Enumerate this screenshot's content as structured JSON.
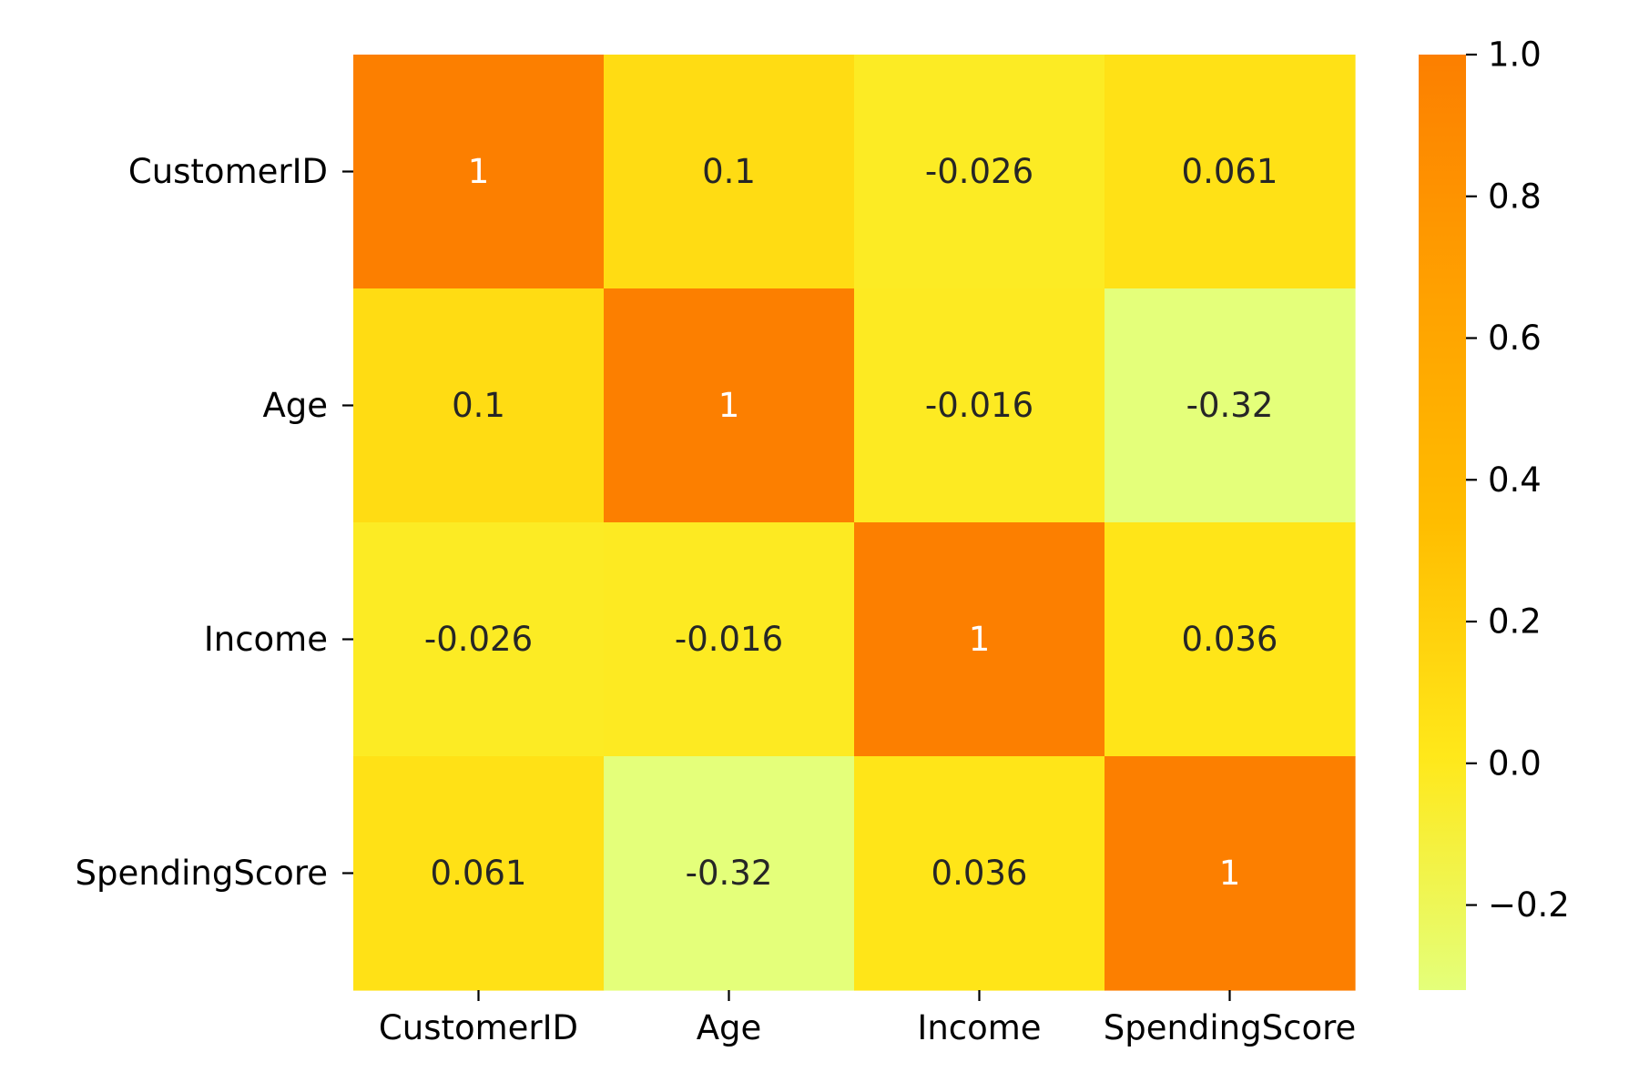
{
  "chart_data": {
    "type": "heatmap",
    "title": "",
    "xlabel": "",
    "ylabel": "",
    "x_categories": [
      "CustomerID",
      "Age",
      "Income",
      "SpendingScore"
    ],
    "y_categories": [
      "CustomerID",
      "Age",
      "Income",
      "SpendingScore"
    ],
    "values": [
      [
        1,
        0.1,
        -0.026,
        0.061
      ],
      [
        0.1,
        1,
        -0.016,
        -0.32
      ],
      [
        -0.026,
        -0.016,
        1,
        0.036
      ],
      [
        0.061,
        -0.32,
        0.036,
        1
      ]
    ],
    "annotations": [
      [
        "1",
        "0.1",
        "-0.026",
        "0.061"
      ],
      [
        "0.1",
        "1",
        "-0.016",
        "-0.32"
      ],
      [
        "-0.026",
        "-0.016",
        "1",
        "0.036"
      ],
      [
        "0.061",
        "-0.32",
        "0.036",
        "1"
      ]
    ],
    "colorbar": {
      "vmin": -0.32,
      "vmax": 1.0,
      "ticks": [
        1.0,
        0.8,
        0.6,
        0.4,
        0.2,
        0.0,
        -0.2
      ],
      "tick_labels": [
        "1.0",
        "0.8",
        "0.6",
        "0.4",
        "0.2",
        "0.0",
        "−0.2"
      ],
      "colormap": "Wistia",
      "color_stops": [
        "#e4ff7a",
        "#ffe81a",
        "#ffbd00",
        "#ffa000",
        "#fc7f00"
      ]
    },
    "annotation_colors": {
      "dark": "#262626",
      "light": "#ffffff"
    },
    "legend": "right",
    "grid": false
  }
}
